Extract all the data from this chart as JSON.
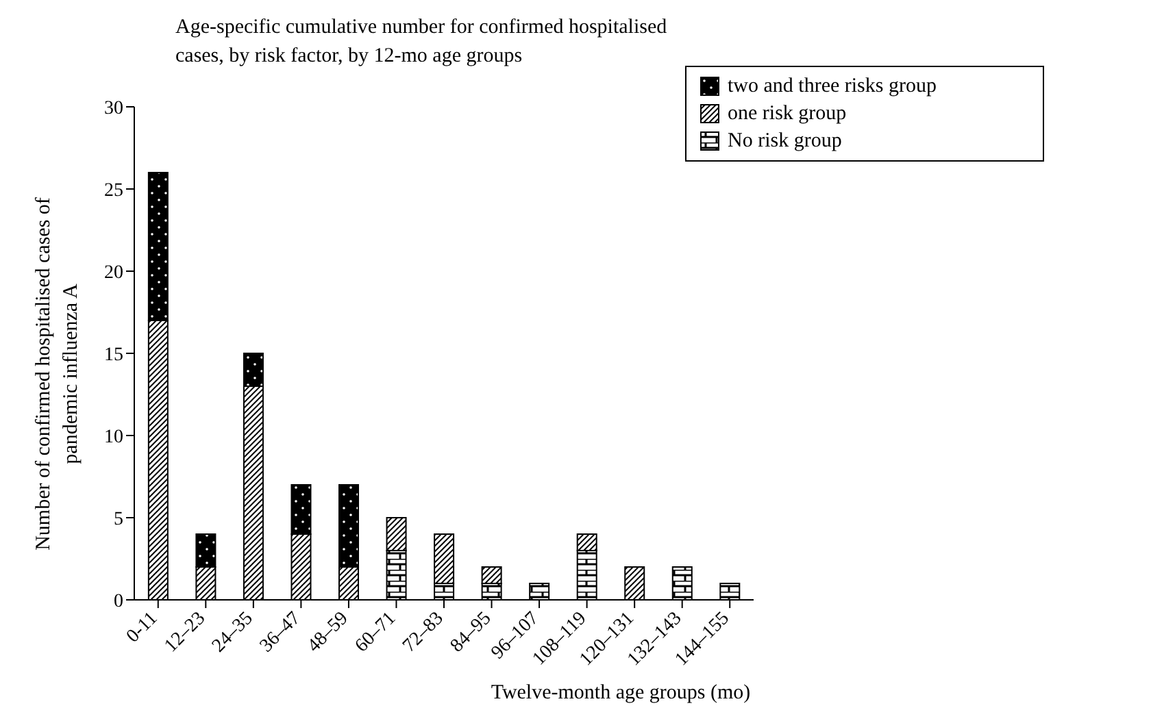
{
  "chart_data": {
    "type": "bar",
    "title": "Age-specific cumulative number for confirmed hospitalised cases, by risk factor, by 12-mo age groups",
    "xlabel": "Twelve-month age groups (mo)",
    "ylabel": "Number of confirmed hospitalised cases of pandemic influenza A",
    "categories": [
      "0-11",
      "12–23",
      "24–35",
      "36–47",
      "48–59",
      "60–71",
      "72–83",
      "84–95",
      "96–107",
      "108–119",
      "120–131",
      "132–143",
      "144–155"
    ],
    "stacked": true,
    "series": [
      {
        "name": "No risk group",
        "color": "#000000",
        "values": [
          0,
          0,
          0,
          0,
          0,
          3,
          1,
          1,
          1,
          3,
          0,
          2,
          1
        ]
      },
      {
        "name": "one risk group",
        "color": "#000000",
        "values": [
          17,
          2,
          13,
          4,
          2,
          2,
          3,
          1,
          0,
          1,
          2,
          0,
          0
        ]
      },
      {
        "name": "two and three risks group",
        "color": "#000000",
        "values": [
          9,
          2,
          2,
          3,
          5,
          0,
          0,
          0,
          0,
          0,
          0,
          0,
          0
        ]
      }
    ],
    "ylim": [
      0,
      30
    ],
    "yticks": [
      0,
      5,
      10,
      15,
      20,
      25,
      30
    ],
    "grid": false,
    "legend": "top right"
  }
}
